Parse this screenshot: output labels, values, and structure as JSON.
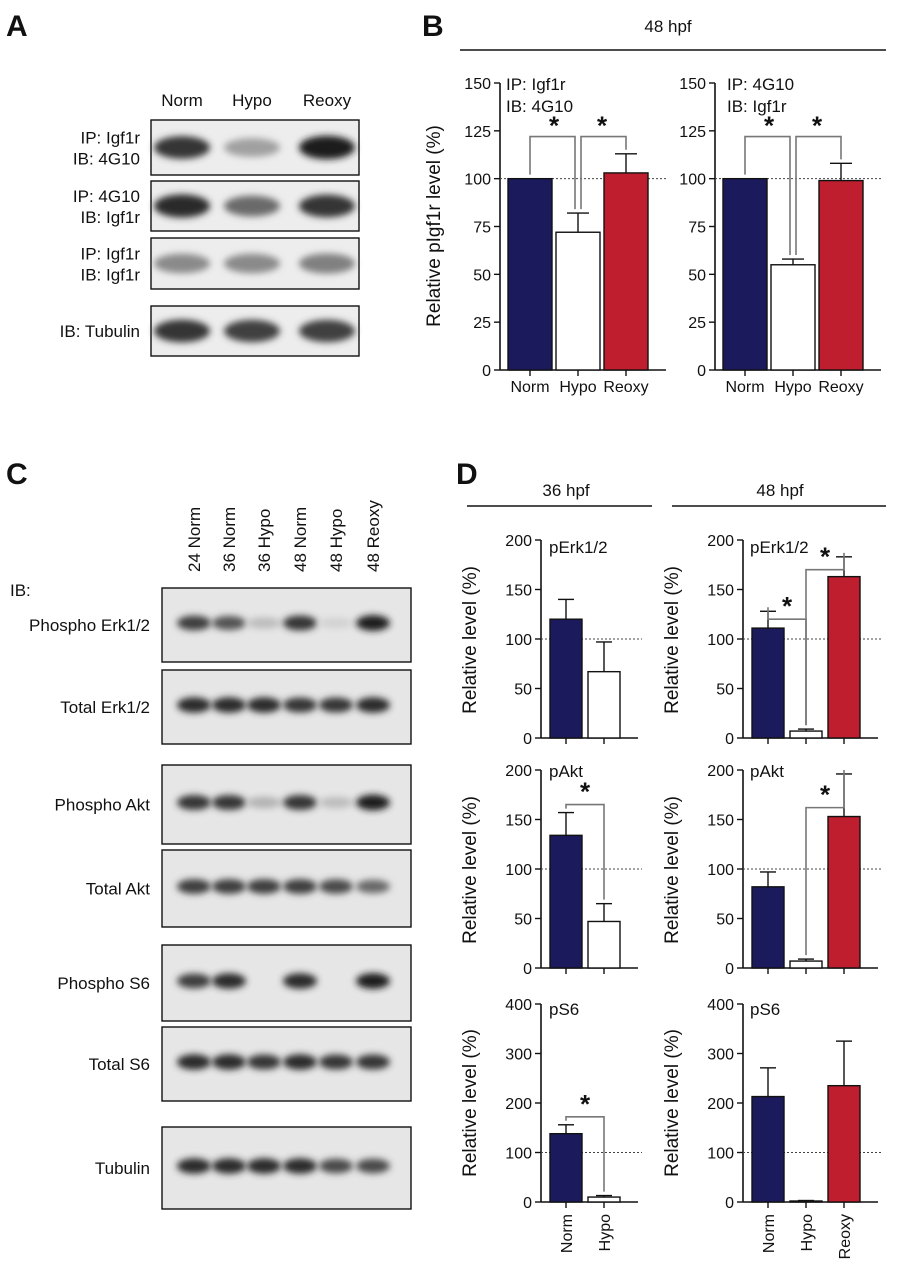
{
  "panels": {
    "A": {
      "letter": "A",
      "lanes": [
        "Norm",
        "Hypo",
        "Reoxy"
      ],
      "blots": [
        {
          "line1": "IP: Igf1r",
          "line2": "IB: 4G10",
          "intensity": [
            0.85,
            0.35,
            0.95
          ]
        },
        {
          "line1": "IP: 4G10",
          "line2": "IB: Igf1r",
          "intensity": [
            0.9,
            0.6,
            0.85
          ]
        },
        {
          "line1": "IP: Igf1r",
          "line2": "IB: Igf1r",
          "intensity": [
            0.45,
            0.45,
            0.5
          ]
        },
        {
          "line1": "IB: Tubulin",
          "line2": "",
          "intensity": [
            0.85,
            0.8,
            0.8
          ]
        }
      ]
    },
    "B": {
      "letter": "B",
      "header": "48 hpf"
    },
    "C": {
      "letter": "C",
      "ib_label": "IB:",
      "lanes": [
        "24 Norm",
        "36 Norm",
        "36 Hypo",
        "48 Norm",
        "48 Hypo",
        "48 Reoxy"
      ],
      "groups": [
        [
          {
            "label": "Phospho Erk1/2",
            "intensity": [
              0.8,
              0.7,
              0.2,
              0.85,
              0.1,
              0.95
            ]
          },
          {
            "label": "Total Erk1/2",
            "intensity": [
              0.9,
              0.9,
              0.9,
              0.85,
              0.85,
              0.9
            ]
          }
        ],
        [
          {
            "label": "Phospho Akt",
            "intensity": [
              0.85,
              0.85,
              0.25,
              0.85,
              0.2,
              0.95
            ]
          },
          {
            "label": "Total Akt",
            "intensity": [
              0.8,
              0.8,
              0.8,
              0.8,
              0.75,
              0.6
            ]
          }
        ],
        [
          {
            "label": "Phospho S6",
            "intensity": [
              0.8,
              0.9,
              0.0,
              0.9,
              0.0,
              0.95
            ]
          },
          {
            "label": "Total S6",
            "intensity": [
              0.9,
              0.9,
              0.85,
              0.9,
              0.85,
              0.85
            ]
          }
        ],
        [
          {
            "label": "Tubulin",
            "intensity": [
              0.9,
              0.9,
              0.9,
              0.9,
              0.75,
              0.75
            ]
          }
        ]
      ]
    },
    "D": {
      "letter": "D",
      "header_36": "36 hpf",
      "header_48": "48 hpf"
    }
  },
  "colors": {
    "norm": "#1b1a5c",
    "hypo": "#ffffff",
    "reoxy": "#be1e2d",
    "axis": "#111111"
  },
  "chart_data": [
    {
      "id": "B1",
      "type": "bar",
      "label_lines": [
        "IP: Igf1r",
        "IB: 4G10"
      ],
      "ylabel": "Relative pIgf1r level (%)",
      "categories": [
        "Norm",
        "Hypo",
        "Reoxy"
      ],
      "values": [
        100,
        72,
        103
      ],
      "errors": [
        0,
        10,
        10
      ],
      "ylim": [
        0,
        150
      ],
      "yticks": [
        0,
        25,
        50,
        75,
        100,
        125,
        150
      ],
      "reference_line": 100,
      "significance": [
        "*",
        "*"
      ],
      "vertical_labels": false
    },
    {
      "id": "B2",
      "type": "bar",
      "label_lines": [
        "IP: 4G10",
        "IB: Igf1r"
      ],
      "ylabel": "",
      "categories": [
        "Norm",
        "Hypo",
        "Reoxy"
      ],
      "values": [
        100,
        55,
        99
      ],
      "errors": [
        0,
        3,
        9
      ],
      "ylim": [
        0,
        150
      ],
      "yticks": [
        0,
        25,
        50,
        75,
        100,
        125,
        150
      ],
      "reference_line": 100,
      "significance": [
        "*",
        "*"
      ],
      "vertical_labels": false
    },
    {
      "id": "D36_pErk",
      "type": "bar",
      "label_lines": [
        "pErk1/2"
      ],
      "ylabel": "Relative level (%)",
      "categories": [
        "Norm",
        "Hypo"
      ],
      "values": [
        120,
        67
      ],
      "errors": [
        20,
        30
      ],
      "ylim": [
        0,
        200
      ],
      "yticks": [
        0,
        50,
        100,
        150,
        200
      ],
      "reference_line": 100,
      "significance": [],
      "vertical_labels": true,
      "show_labels": false
    },
    {
      "id": "D48_pErk",
      "type": "bar",
      "label_lines": [
        "pErk1/2"
      ],
      "ylabel": "Relative level (%)",
      "categories": [
        "Norm",
        "Hypo",
        "Reoxy"
      ],
      "values": [
        111,
        7,
        163
      ],
      "errors": [
        17,
        2,
        20
      ],
      "ylim": [
        0,
        200
      ],
      "yticks": [
        0,
        50,
        100,
        150,
        200
      ],
      "reference_line": 100,
      "significance": [
        "*",
        "*"
      ],
      "vertical_labels": true,
      "show_labels": false
    },
    {
      "id": "D36_pAkt",
      "type": "bar",
      "label_lines": [
        "pAkt"
      ],
      "ylabel": "Relative level (%)",
      "categories": [
        "Norm",
        "Hypo"
      ],
      "values": [
        134,
        47
      ],
      "errors": [
        23,
        18
      ],
      "ylim": [
        0,
        200
      ],
      "yticks": [
        0,
        50,
        100,
        150,
        200
      ],
      "reference_line": 100,
      "significance": [
        "*"
      ],
      "vertical_labels": true,
      "show_labels": false
    },
    {
      "id": "D48_pAkt",
      "type": "bar",
      "label_lines": [
        "pAkt"
      ],
      "ylabel": "Relative level (%)",
      "categories": [
        "Norm",
        "Hypo",
        "Reoxy"
      ],
      "values": [
        82,
        7,
        153
      ],
      "errors": [
        15,
        2,
        43
      ],
      "ylim": [
        0,
        200
      ],
      "yticks": [
        0,
        50,
        100,
        150,
        200
      ],
      "reference_line": 100,
      "significance": [
        "*"
      ],
      "vertical_labels": true,
      "show_labels": false
    },
    {
      "id": "D36_pS6",
      "type": "bar",
      "label_lines": [
        "pS6"
      ],
      "ylabel": "Relative level (%)",
      "categories": [
        "Norm",
        "Hypo"
      ],
      "values": [
        138,
        10
      ],
      "errors": [
        18,
        3
      ],
      "ylim": [
        0,
        400
      ],
      "yticks": [
        0,
        100,
        200,
        300,
        400
      ],
      "reference_line": 100,
      "significance": [
        "*"
      ],
      "vertical_labels": true,
      "show_labels": true
    },
    {
      "id": "D48_pS6",
      "type": "bar",
      "label_lines": [
        "pS6"
      ],
      "ylabel": "Relative level (%)",
      "categories": [
        "Norm",
        "Hypo",
        "Reoxy"
      ],
      "values": [
        213,
        2,
        235
      ],
      "errors": [
        58,
        1,
        90
      ],
      "ylim": [
        0,
        400
      ],
      "yticks": [
        0,
        100,
        200,
        300,
        400
      ],
      "reference_line": 100,
      "significance": [],
      "vertical_labels": true,
      "show_labels": true
    }
  ]
}
